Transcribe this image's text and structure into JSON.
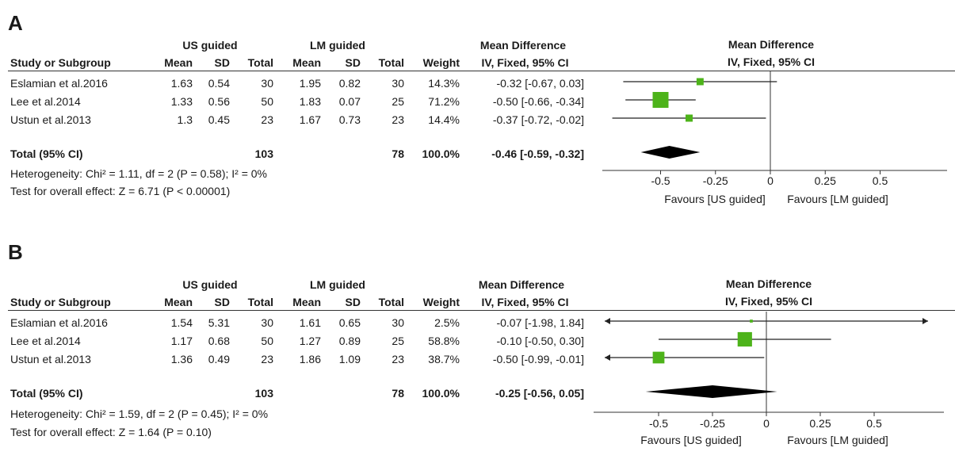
{
  "chart_data": [
    {
      "type": "forest",
      "panel_label": "A",
      "group1_label": "US guided",
      "group2_label": "LM guided",
      "effect_header": "Mean Difference",
      "effect_subheader": "IV, Fixed, 95% CI",
      "plot_header": "Mean Difference",
      "plot_subheader": "IV, Fixed, 95% CI",
      "columns": [
        "Study or Subgroup",
        "Mean",
        "SD",
        "Total",
        "Mean",
        "SD",
        "Total",
        "Weight",
        "IV, Fixed, 95% CI"
      ],
      "studies": [
        {
          "name": "Eslamian et al.2016",
          "mean1": "1.63",
          "sd1": "0.54",
          "n1": "30",
          "mean2": "1.95",
          "sd2": "0.82",
          "n2": "30",
          "weight_label": "14.3%",
          "ci_label": "-0.32 [-0.67, 0.03]",
          "weight": 14.3,
          "est": -0.32,
          "lo": -0.67,
          "hi": 0.03
        },
        {
          "name": "Lee et al.2014",
          "mean1": "1.33",
          "sd1": "0.56",
          "n1": "50",
          "mean2": "1.83",
          "sd2": "0.07",
          "n2": "25",
          "weight_label": "71.2%",
          "ci_label": "-0.50 [-0.66, -0.34]",
          "weight": 71.2,
          "est": -0.5,
          "lo": -0.66,
          "hi": -0.34
        },
        {
          "name": "Ustun et al.2013",
          "mean1": "1.3",
          "sd1": "0.45",
          "n1": "23",
          "mean2": "1.67",
          "sd2": "0.73",
          "n2": "23",
          "weight_label": "14.4%",
          "ci_label": "-0.37 [-0.72, -0.02]",
          "weight": 14.4,
          "est": -0.37,
          "lo": -0.72,
          "hi": -0.02
        }
      ],
      "total": {
        "name": "Total (95% CI)",
        "n1": "103",
        "n2": "78",
        "weight_label": "100.0%",
        "ci_label": "-0.46 [-0.59, -0.32]",
        "est": -0.46,
        "lo": -0.59,
        "hi": -0.32
      },
      "heterogeneity": "Heterogeneity: Chi² = 1.11, df = 2 (P = 0.58); I² = 0%",
      "overall_effect": "Test for overall effect: Z = 6.71 (P < 0.00001)",
      "xlim": [
        -0.75,
        0.75
      ],
      "ticks": [
        -0.5,
        -0.25,
        0,
        0.25,
        0.5
      ],
      "tick_labels": [
        "-0.5",
        "-0.25",
        "0",
        "0.25",
        "0.5"
      ],
      "favours_left": "Favours [US guided]",
      "favours_right": "Favours [LM guided]",
      "marker_color": "#4db31a"
    },
    {
      "type": "forest",
      "panel_label": "B",
      "group1_label": "US guided",
      "group2_label": "LM guided",
      "effect_header": "Mean Difference",
      "effect_subheader": "IV, Fixed, 95% CI",
      "plot_header": "Mean Difference",
      "plot_subheader": "IV, Fixed, 95% CI",
      "columns": [
        "Study or Subgroup",
        "Mean",
        "SD",
        "Total",
        "Mean",
        "SD",
        "Total",
        "Weight",
        "IV, Fixed, 95% CI"
      ],
      "studies": [
        {
          "name": "Eslamian et al.2016",
          "mean1": "1.54",
          "sd1": "5.31",
          "n1": "30",
          "mean2": "1.61",
          "sd2": "0.65",
          "n2": "30",
          "weight_label": "2.5%",
          "ci_label": "-0.07 [-1.98, 1.84]",
          "weight": 2.5,
          "est": -0.07,
          "lo": -1.98,
          "hi": 1.84
        },
        {
          "name": "Lee et al.2014",
          "mean1": "1.17",
          "sd1": "0.68",
          "n1": "50",
          "mean2": "1.27",
          "sd2": "0.89",
          "n2": "25",
          "weight_label": "58.8%",
          "ci_label": "-0.10 [-0.50, 0.30]",
          "weight": 58.8,
          "est": -0.1,
          "lo": -0.5,
          "hi": 0.3
        },
        {
          "name": "Ustun et al.2013",
          "mean1": "1.36",
          "sd1": "0.49",
          "n1": "23",
          "mean2": "1.86",
          "sd2": "1.09",
          "n2": "23",
          "weight_label": "38.7%",
          "ci_label": "-0.50 [-0.99, -0.01]",
          "weight": 38.7,
          "est": -0.5,
          "lo": -0.99,
          "hi": -0.01
        }
      ],
      "total": {
        "name": "Total (95% CI)",
        "n1": "103",
        "n2": "78",
        "weight_label": "100.0%",
        "ci_label": "-0.25 [-0.56, 0.05]",
        "est": -0.25,
        "lo": -0.56,
        "hi": 0.05
      },
      "heterogeneity": "Heterogeneity: Chi² = 1.59, df = 2 (P = 0.45); I² = 0%",
      "overall_effect": "Test for overall effect: Z = 1.64 (P = 0.10)",
      "xlim": [
        -0.75,
        0.75
      ],
      "ticks": [
        -0.5,
        -0.25,
        0,
        0.25,
        0.5
      ],
      "tick_labels": [
        "-0.5",
        "-0.25",
        "0",
        "0.25",
        "0.5"
      ],
      "favours_left": "Favours [US guided]",
      "favours_right": "Favours [LM guided]",
      "marker_color": "#4db31a"
    }
  ]
}
